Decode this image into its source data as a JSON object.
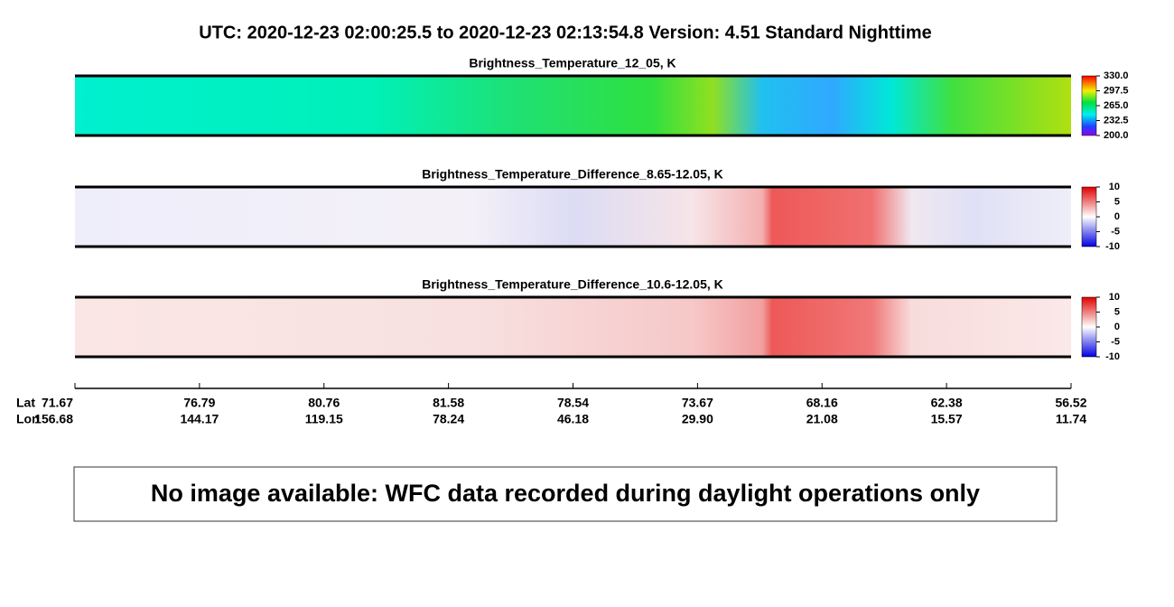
{
  "header": {
    "title": "UTC:  2020-12-23   02:00:25.5  to  2020-12-23   02:13:54.8    Version: 4.51  Standard Nighttime"
  },
  "panels": [
    {
      "title": "Brightness_Temperature_12_05, K",
      "colorbar_ticks": [
        "330.0",
        "297.5",
        "265.0",
        "232.5",
        "200.0"
      ]
    },
    {
      "title": "Brightness_Temperature_Difference_8.65-12.05, K",
      "colorbar_ticks": [
        "10",
        "5",
        "0",
        "-5",
        "-10"
      ]
    },
    {
      "title": "Brightness_Temperature_Difference_10.6-12.05, K",
      "colorbar_ticks": [
        "10",
        "5",
        "0",
        "-5",
        "-10"
      ]
    }
  ],
  "track_axis": {
    "lat_label": "Lat",
    "lon_label": "Lon",
    "lat": [
      "71.67",
      "76.79",
      "80.76",
      "81.58",
      "78.54",
      "73.67",
      "68.16",
      "62.38",
      "56.52"
    ],
    "lon": [
      "156.68",
      "144.17",
      "119.15",
      "78.24",
      "46.18",
      "29.90",
      "21.08",
      "15.57",
      "11.74"
    ]
  },
  "notice": "No image available: WFC data recorded during daylight operations only"
}
